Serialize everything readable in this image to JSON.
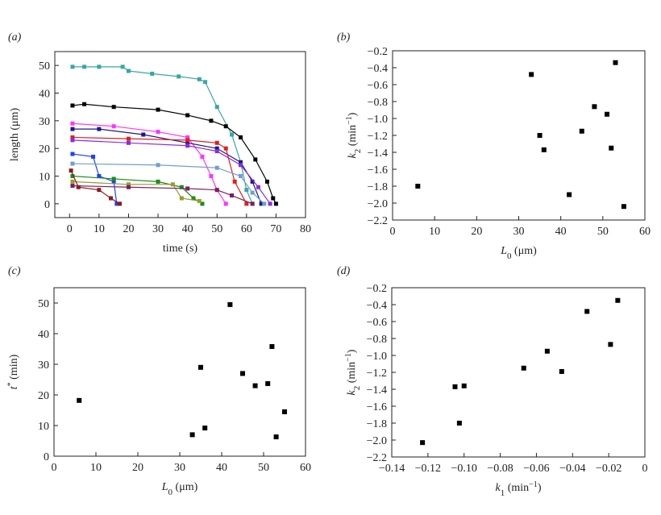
{
  "chart_data": [
    {
      "type": "line",
      "title": "(a)",
      "x_label": [
        "time (s)"
      ],
      "y_label": [
        "length (μm)"
      ],
      "xlim": [
        -5,
        80
      ],
      "xticks": [
        0,
        10,
        20,
        30,
        40,
        50,
        60,
        70,
        80
      ],
      "ylim": [
        -5,
        55
      ],
      "yticks": [
        0,
        10,
        20,
        30,
        40,
        50
      ],
      "series": [
        {
          "color": "#3aa6a6",
          "x": [
            1,
            5,
            10,
            18,
            20,
            28,
            37,
            44,
            46,
            50,
            55,
            58,
            60,
            62
          ],
          "values": [
            49.5,
            49.5,
            49.5,
            49.5,
            48,
            47,
            46,
            45,
            44,
            35,
            25,
            15,
            5,
            0
          ]
        },
        {
          "color": "#000000",
          "x": [
            1,
            5,
            15,
            30,
            40,
            48,
            53,
            58,
            63,
            67,
            69,
            70
          ],
          "values": [
            35.5,
            36,
            35,
            34,
            32,
            30,
            28,
            24,
            16,
            8,
            2,
            0
          ]
        },
        {
          "color": "#ff33ff",
          "x": [
            1,
            15,
            30,
            40,
            45,
            48,
            50,
            53
          ],
          "values": [
            29,
            28,
            26,
            24,
            17,
            10,
            5,
            0
          ]
        },
        {
          "color": "#1a1a8c",
          "x": [
            1,
            10,
            25,
            40,
            50,
            58,
            62,
            65
          ],
          "values": [
            27,
            27,
            25,
            22,
            20,
            15,
            8,
            0
          ]
        },
        {
          "color": "#e0201a",
          "x": [
            1,
            20,
            40,
            50,
            53,
            56,
            60
          ],
          "values": [
            24,
            23.5,
            23,
            22,
            20,
            8,
            0
          ]
        },
        {
          "color": "#8a2be2",
          "x": [
            1,
            20,
            40,
            50,
            58,
            64,
            68
          ],
          "values": [
            23,
            22,
            21,
            19,
            14,
            6,
            0
          ]
        },
        {
          "color": "#1f3fff",
          "x": [
            1,
            8,
            10,
            15,
            16
          ],
          "values": [
            18,
            17,
            10,
            8,
            0
          ]
        },
        {
          "color": "#6fa0d0",
          "x": [
            1,
            30,
            50,
            58,
            62,
            66
          ],
          "values": [
            14.5,
            14,
            13,
            10,
            4,
            0
          ]
        },
        {
          "color": "#1a8c1a",
          "x": [
            1,
            15,
            30,
            38,
            42,
            45
          ],
          "values": [
            10,
            9,
            8,
            6,
            2,
            0
          ]
        },
        {
          "color": "#9a9a30",
          "x": [
            1,
            20,
            35,
            38,
            44
          ],
          "values": [
            8,
            7,
            7,
            2,
            1
          ]
        },
        {
          "color": "#8b1a1a",
          "x": [
            0.5,
            3,
            10,
            14,
            17
          ],
          "values": [
            12,
            6,
            5,
            2,
            0
          ]
        },
        {
          "color": "#7b1f5f",
          "x": [
            1,
            20,
            40,
            50,
            55,
            62
          ],
          "values": [
            6.5,
            6,
            5.5,
            5,
            3,
            0
          ]
        }
      ]
    },
    {
      "type": "scatter",
      "title": "(b)",
      "x_label": [
        "L",
        "0",
        " (μm)"
      ],
      "y_label": [
        "k",
        "2",
        " (min",
        "−1",
        ")"
      ],
      "color": "#000000",
      "xlim": [
        0,
        60
      ],
      "xticks": [
        0,
        10,
        20,
        30,
        40,
        50,
        60
      ],
      "ylim": [
        -2.2,
        -0.2
      ],
      "yticks": [
        {
          "value": -2.2,
          "label": "−2.2"
        },
        {
          "value": -2.0,
          "label": "−2.0"
        },
        {
          "value": -1.8,
          "label": "−1.8"
        },
        {
          "value": -1.6,
          "label": "−1.6"
        },
        {
          "value": -1.4,
          "label": "−1.4"
        },
        {
          "value": -1.2,
          "label": "−1.2"
        },
        {
          "value": -1.0,
          "label": "−1.0"
        },
        {
          "value": -0.8,
          "label": "−0.8"
        },
        {
          "value": -0.6,
          "label": "−0.6"
        },
        {
          "value": -0.4,
          "label": "−0.4"
        },
        {
          "value": -0.2,
          "label": "−0.2"
        }
      ],
      "x": [
        6,
        33,
        35,
        36,
        42,
        45,
        48,
        51,
        52,
        53,
        55
      ],
      "values": [
        -1.8,
        -0.48,
        -1.2,
        -1.37,
        -1.9,
        -1.15,
        -0.86,
        -0.95,
        -1.35,
        -0.34,
        -2.04
      ]
    },
    {
      "type": "scatter",
      "title": "(c)",
      "x_label": [
        "L",
        "0",
        " (μm)"
      ],
      "y_label": [
        "t",
        "*",
        " (min)"
      ],
      "color": "#000000",
      "xlim": [
        0,
        60
      ],
      "xticks": [
        0,
        10,
        20,
        30,
        40,
        50,
        60
      ],
      "ylim": [
        0,
        55
      ],
      "yticks": [
        0,
        10,
        20,
        30,
        40,
        50
      ],
      "x": [
        6,
        33,
        35,
        36,
        42,
        45,
        48,
        51,
        52,
        53,
        55
      ],
      "values": [
        18.2,
        7,
        29,
        9.2,
        49.5,
        27,
        23,
        23.7,
        35.8,
        6.3,
        14.5
      ]
    },
    {
      "type": "scatter",
      "title": "(d)",
      "x_label": [
        "k",
        "1",
        " (min",
        "−1",
        ")"
      ],
      "y_label": [
        "k",
        "2",
        " (min",
        "−1",
        ")"
      ],
      "color": "#000000",
      "xlim": [
        -0.14,
        0
      ],
      "xticks": [
        {
          "value": -0.14,
          "label": "−0.14"
        },
        {
          "value": -0.12,
          "label": "−0.12"
        },
        {
          "value": -0.1,
          "label": "−0.10"
        },
        {
          "value": -0.08,
          "label": "−0.08"
        },
        {
          "value": -0.06,
          "label": "−0.06"
        },
        {
          "value": -0.04,
          "label": "−0.04"
        },
        {
          "value": -0.02,
          "label": "−0.02"
        },
        0
      ],
      "ylim": [
        -2.2,
        -0.2
      ],
      "yticks": [
        {
          "value": -2.2,
          "label": "−2.2"
        },
        {
          "value": -2.0,
          "label": "−2.0"
        },
        {
          "value": -1.8,
          "label": "−1.8"
        },
        {
          "value": -1.6,
          "label": "−1.6"
        },
        {
          "value": -1.4,
          "label": "−1.4"
        },
        {
          "value": -1.2,
          "label": "−1.2"
        },
        {
          "value": -1.0,
          "label": "−1.0"
        },
        {
          "value": -0.8,
          "label": "−0.8"
        },
        {
          "value": -0.6,
          "label": "−0.6"
        },
        {
          "value": -0.4,
          "label": "−0.4"
        },
        {
          "value": -0.2,
          "label": "−0.2"
        }
      ],
      "x": [
        -0.123,
        -0.105,
        -0.1,
        -0.1026,
        -0.067,
        -0.054,
        -0.046,
        -0.032,
        -0.019,
        -0.015
      ],
      "values": [
        -2.03,
        -1.37,
        -1.36,
        -1.8,
        -1.15,
        -0.95,
        -1.19,
        -0.48,
        -0.87,
        -0.35
      ]
    }
  ]
}
